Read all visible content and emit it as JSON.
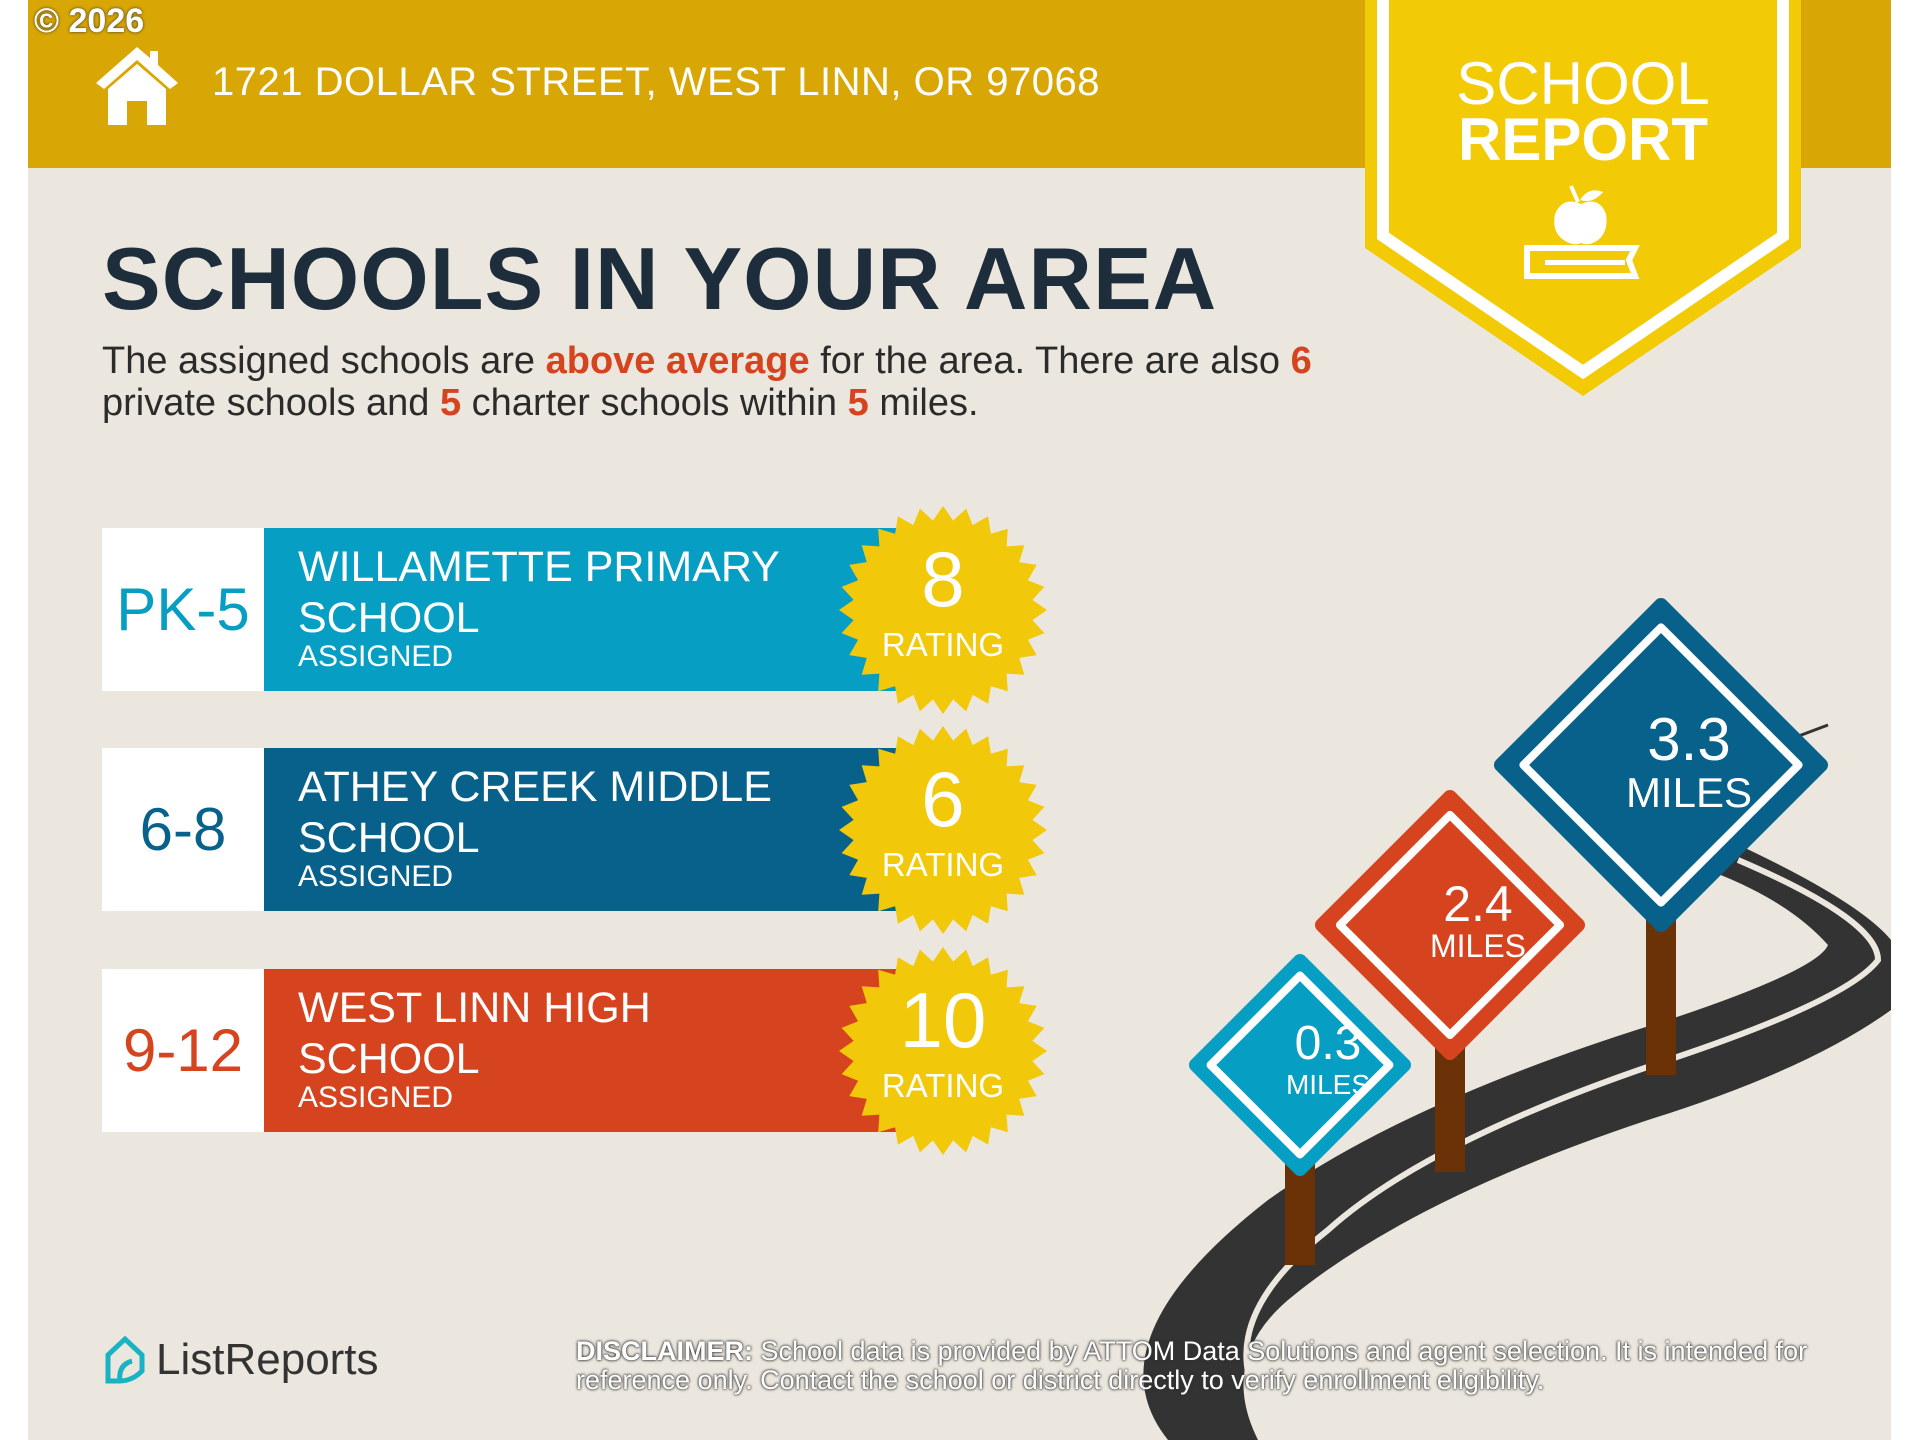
{
  "copyright": "© 2026",
  "header": {
    "address": "1721 DOLLAR STREET, WEST LINN, OR 97068",
    "icon": "home-icon"
  },
  "badge": {
    "line1": "SCHOOL",
    "line2": "REPORT",
    "icon": "apple-on-book-icon"
  },
  "title": "SCHOOLS IN YOUR AREA",
  "intro": {
    "p1": "The assigned schools are ",
    "highlight": "above average",
    "p2": " for the area. There are also ",
    "private_count": "6",
    "p3": " private schools and ",
    "charter_count": "5",
    "p4": " charter schools within ",
    "miles": "5",
    "p5": " miles."
  },
  "schools": [
    {
      "grades": "PK-5",
      "name": "WILLAMETTE PRIMARY SCHOOL",
      "status": "ASSIGNED",
      "rating": "8",
      "rating_label": "RATING",
      "color": "#079EC4"
    },
    {
      "grades": "6-8",
      "name": "ATHEY CREEK MIDDLE SCHOOL",
      "status": "ASSIGNED",
      "rating": "6",
      "rating_label": "RATING",
      "color": "#07618A"
    },
    {
      "grades": "9-12",
      "name": "WEST LINN HIGH SCHOOL",
      "status": "ASSIGNED",
      "rating": "10",
      "rating_label": "RATING",
      "color": "#D6441F"
    }
  ],
  "distances": [
    {
      "value": "0.3",
      "unit": "MILES",
      "color": "#079EC4"
    },
    {
      "value": "2.4",
      "unit": "MILES",
      "color": "#D6441F"
    },
    {
      "value": "3.3",
      "unit": "MILES",
      "color": "#07618A"
    }
  ],
  "logo": {
    "text": "ListReports"
  },
  "disclaimer": {
    "label": "DISCLAIMER:",
    "text": " School data is provided by ATTOM Data Solutions and agent selection. It is intended for reference only. Contact the school or district directly to verify enrollment eligibility."
  },
  "colors": {
    "header": "#D9A705",
    "badge": "#F2CA05",
    "background": "#ECE7DE",
    "title": "#1E2D3B",
    "accent": "#D6441F",
    "star": "#F2C80A"
  }
}
